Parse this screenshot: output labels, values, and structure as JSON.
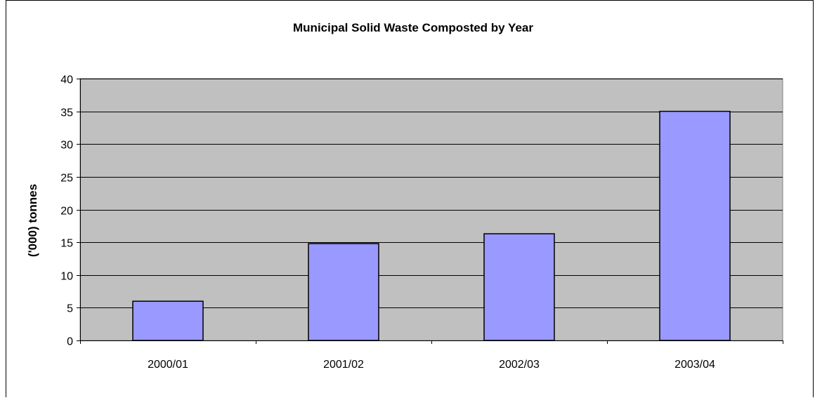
{
  "chart_data": {
    "type": "bar",
    "title": "Municipal Solid Waste Composted by Year",
    "xlabel": "",
    "ylabel": "('000) tonnes",
    "categories": [
      "2000/01",
      "2001/02",
      "2002/03",
      "2003/04"
    ],
    "values": [
      6.0,
      14.8,
      16.3,
      35.0
    ],
    "ylim": [
      0,
      40
    ],
    "yticks": [
      "0",
      "5",
      "10",
      "15",
      "20",
      "25",
      "30",
      "35",
      "40"
    ],
    "grid": true,
    "legend": "none",
    "colors": {
      "plot_background": "#c0c0c0",
      "bar_fill": "#9999ff",
      "bar_stroke": "#000000",
      "gridline": "#000000"
    }
  }
}
